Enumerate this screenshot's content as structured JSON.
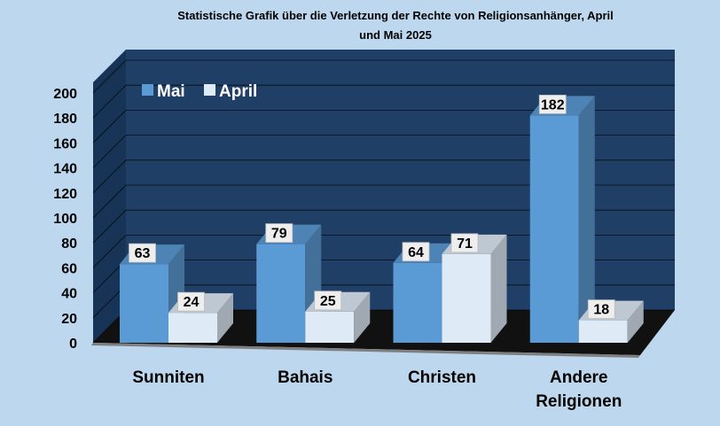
{
  "chart_data": {
    "type": "bar",
    "title": "Statistische Grafik über die Verletzung der Rechte von Religionsanhänger, April und Mai 2025",
    "title_lines": [
      "Statistische Grafik über die Verletzung der Rechte von Religionsanhänger, April",
      "und Mai 2025"
    ],
    "categories": [
      [
        "Sunniten"
      ],
      [
        "Bahais"
      ],
      [
        "Christen"
      ],
      [
        "Andere",
        "Religionen"
      ]
    ],
    "series": [
      {
        "name": "Mai",
        "values": [
          63,
          79,
          64,
          182
        ],
        "color": "#5b9bd5"
      },
      {
        "name": "April",
        "values": [
          24,
          25,
          71,
          18
        ],
        "color": "#deebf7"
      }
    ],
    "ylim": [
      0,
      200
    ],
    "yticks": [
      0,
      20,
      40,
      60,
      80,
      100,
      120,
      140,
      160,
      180,
      200
    ],
    "grid": true,
    "legend_position": "top-left",
    "style": "3d-clustered-column",
    "wall_color": "#1f3f66",
    "floor_color": "#7f7f7f",
    "background_color": "#bdd7ee"
  }
}
